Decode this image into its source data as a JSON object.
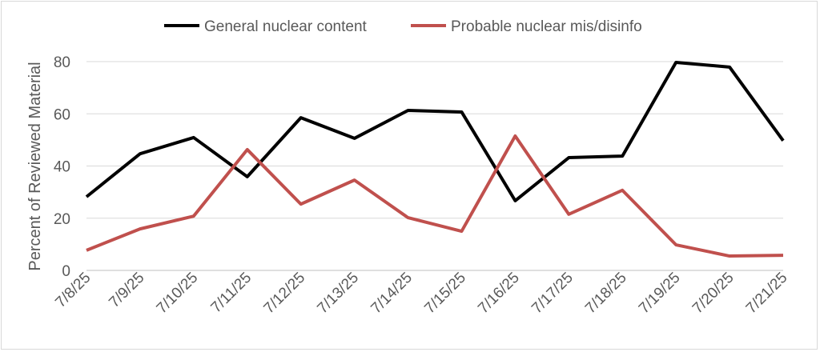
{
  "chart_data": {
    "type": "line",
    "title": "",
    "xlabel": "",
    "ylabel": "Percent of Reviewed Material",
    "ylim": [
      0,
      80
    ],
    "yticks": [
      0,
      20,
      40,
      60,
      80
    ],
    "grid": true,
    "legend_position": "top",
    "categories": [
      "7/8/25",
      "7/9/25",
      "7/10/25",
      "7/11/25",
      "7/12/25",
      "7/13/25",
      "7/14/25",
      "7/15/25",
      "7/16/25",
      "7/17/25",
      "7/18/25",
      "7/19/25",
      "7/20/25",
      "7/21/25"
    ],
    "series": [
      {
        "name": "General nuclear content",
        "color": "#000000",
        "values": [
          28.2,
          44.7,
          50.9,
          35.9,
          58.5,
          50.6,
          61.3,
          60.7,
          26.7,
          43.2,
          43.8,
          79.7,
          77.9,
          49.7
        ]
      },
      {
        "name": "Probable nuclear mis/disinfo",
        "color": "#c0504d",
        "values": [
          7.7,
          15.9,
          20.8,
          46.3,
          25.4,
          34.6,
          20.2,
          15.0,
          51.5,
          21.5,
          30.7,
          9.8,
          5.5,
          5.8
        ]
      }
    ]
  }
}
